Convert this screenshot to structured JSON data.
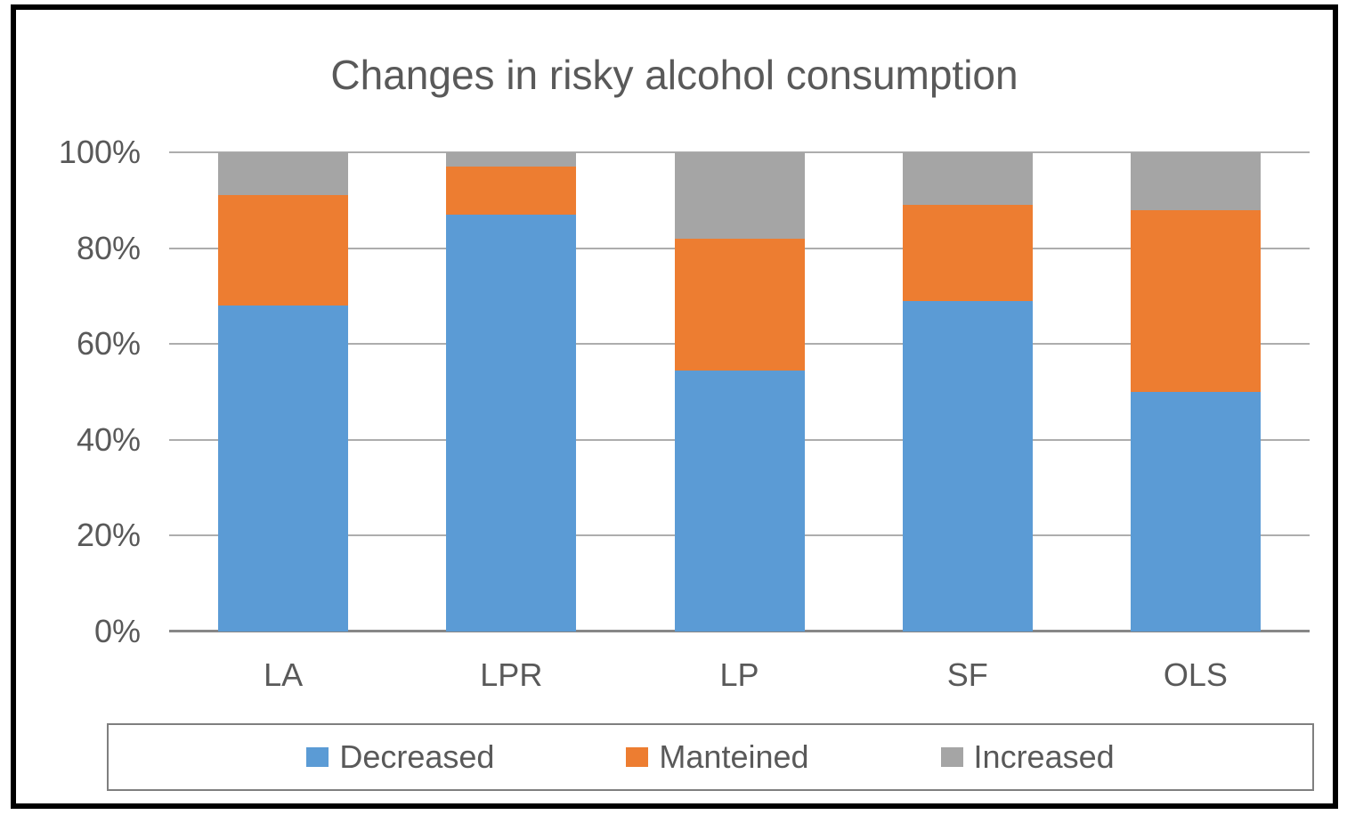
{
  "chart_data": {
    "type": "bar",
    "variant": "stacked-100-percent-column",
    "title": "Changes in risky alcohol consumption",
    "categories": [
      "LA",
      "LPR",
      "LP",
      "SF",
      "OLS"
    ],
    "series": [
      {
        "name": "Decreased",
        "color": "#5B9BD5",
        "values": [
          68,
          87,
          54.5,
          69,
          50
        ]
      },
      {
        "name": "Manteined",
        "color": "#ED7D31",
        "values": [
          23,
          10,
          27.5,
          20,
          38
        ]
      },
      {
        "name": "Increased",
        "color": "#A5A5A5",
        "values": [
          9,
          3,
          18,
          11,
          12
        ]
      }
    ],
    "xlabel": "",
    "ylabel": "",
    "y_ticks": [
      "0%",
      "20%",
      "40%",
      "60%",
      "80%",
      "100%"
    ],
    "ylim": [
      0,
      100
    ],
    "grid": true,
    "legend_position": "bottom"
  },
  "colors": {
    "text": "#595959",
    "gridline": "#ADADAD",
    "axis_line": "#878787",
    "legend_border": "#7F7F7F",
    "frame_border": "#000000"
  }
}
